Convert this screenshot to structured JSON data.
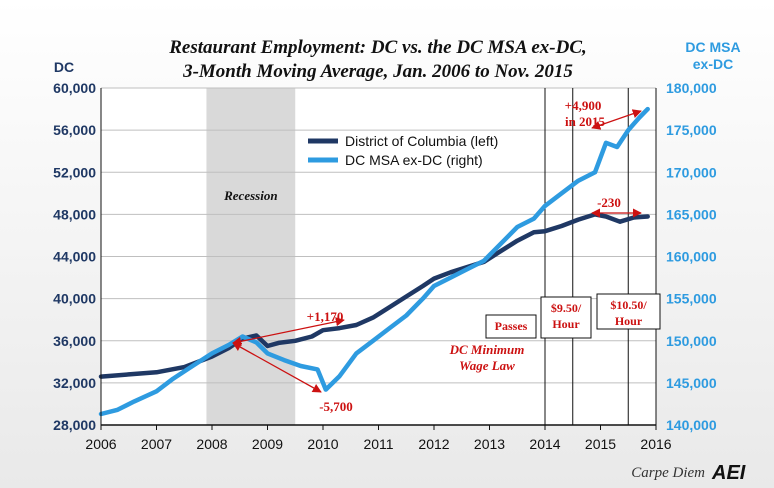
{
  "chart_data": {
    "type": "line",
    "title": "Restaurant Employment: DC vs. the DC MSA ex-DC,",
    "subtitle": "3-Month Moving Average, Jan. 2006 to Nov. 2015",
    "ylabel_left": "DC",
    "ylabel_right": "DC MSA ex-DC",
    "ylim_left": [
      28000,
      60000
    ],
    "ylim_right": [
      140000,
      180000
    ],
    "yticks_left": [
      "28,000",
      "32,000",
      "36,000",
      "40,000",
      "44,000",
      "48,000",
      "52,000",
      "56,000",
      "60,000"
    ],
    "yticks_right": [
      "140,000",
      "145,000",
      "150,000",
      "155,000",
      "160,000",
      "165,000",
      "170,000",
      "175,000",
      "180,000"
    ],
    "xlim": [
      2006,
      2016
    ],
    "xticks": [
      "2006",
      "2007",
      "2008",
      "2009",
      "2010",
      "2011",
      "2012",
      "2013",
      "2014",
      "2015",
      "2016"
    ],
    "legend": [
      "District of Columbia (left)",
      "DC MSA ex-DC (right)"
    ],
    "colors": {
      "dc": "#1f3864",
      "msa": "#2e9be0",
      "annotation": "#cc1111",
      "recession": "#d9d9d9"
    },
    "series": [
      {
        "name": "District of Columbia (left)",
        "axis": "left",
        "x": [
          2006.0,
          2006.5,
          2007.0,
          2007.5,
          2008.0,
          2008.3,
          2008.55,
          2008.8,
          2009.0,
          2009.2,
          2009.5,
          2009.8,
          2010.0,
          2010.3,
          2010.6,
          2010.9,
          2011.2,
          2011.5,
          2011.8,
          2012.0,
          2012.3,
          2012.6,
          2012.9,
          2013.2,
          2013.5,
          2013.8,
          2014.0,
          2014.3,
          2014.6,
          2014.9,
          2015.1,
          2015.35,
          2015.6,
          2015.85
        ],
        "values": [
          32600,
          32800,
          33000,
          33500,
          34500,
          35300,
          36200,
          36500,
          35500,
          35800,
          36000,
          36400,
          37000,
          37200,
          37500,
          38200,
          39200,
          40200,
          41200,
          41900,
          42500,
          43000,
          43500,
          44500,
          45500,
          46300,
          46400,
          46900,
          47500,
          48000,
          47800,
          47300,
          47700,
          47800
        ]
      },
      {
        "name": "DC MSA ex-DC (right)",
        "axis": "right",
        "x": [
          2006.0,
          2006.3,
          2006.6,
          2007.0,
          2007.3,
          2007.6,
          2008.0,
          2008.3,
          2008.55,
          2008.8,
          2009.0,
          2009.3,
          2009.6,
          2009.9,
          2010.05,
          2010.3,
          2010.6,
          2010.9,
          2011.2,
          2011.5,
          2011.8,
          2012.0,
          2012.3,
          2012.6,
          2012.9,
          2013.2,
          2013.5,
          2013.8,
          2014.0,
          2014.3,
          2014.6,
          2014.9,
          2015.1,
          2015.3,
          2015.5,
          2015.7,
          2015.85
        ],
        "values": [
          141300,
          141800,
          142800,
          144000,
          145500,
          146800,
          148500,
          149500,
          150500,
          149800,
          148500,
          147700,
          147000,
          146600,
          144200,
          145800,
          148500,
          150000,
          151500,
          153000,
          155000,
          156500,
          157500,
          158500,
          159500,
          161500,
          163500,
          164500,
          166000,
          167500,
          169000,
          170000,
          173500,
          173000,
          175000,
          176500,
          177500
        ]
      }
    ],
    "recession": {
      "start": 2007.9,
      "end": 2009.5,
      "label": "Recession"
    },
    "event_lines": [
      2014.0,
      2014.5,
      2015.5
    ],
    "annotations": {
      "dc_change_recession": "+1,170",
      "msa_change_recession": "-5,700",
      "msa_change_2015": "+4,900",
      "msa_change_2015_b": "in 2015",
      "dc_change_2015": "-230",
      "min_wage_1": "DC Minimum",
      "min_wage_2": "Wage Law",
      "box_passes": "Passes",
      "box_950_a": "$9.50/",
      "box_950_b": "Hour",
      "box_1050_a": "$10.50/",
      "box_1050_b": "Hour"
    },
    "source": "Carpe Diem",
    "logo": "AEI"
  }
}
